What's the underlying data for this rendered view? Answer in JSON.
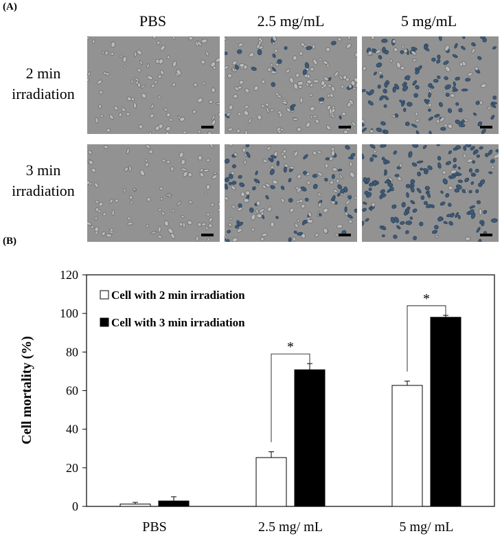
{
  "panel_a": {
    "label": "(A)",
    "columns": [
      "PBS",
      "2.5 mg/mL",
      "5 mg/mL"
    ],
    "rows": [
      {
        "line1": "2 min",
        "line2": "irradiation"
      },
      {
        "line1": "3 min",
        "line2": "irradiation"
      }
    ]
  },
  "panel_b": {
    "label": "(B)"
  },
  "chart_data": {
    "type": "bar",
    "categories": [
      "PBS",
      "2.5 mg/ mL",
      "5 mg/ mL"
    ],
    "series": [
      {
        "name": "Cell with 2 min irradiation",
        "values": [
          1.2,
          25.3,
          62.7
        ],
        "errors": [
          0.9,
          3.0,
          2.2
        ],
        "color": "#ffffff"
      },
      {
        "name": "Cell with 3 min irradiation",
        "values": [
          2.8,
          70.8,
          98.0
        ],
        "errors": [
          2.2,
          3.2,
          1.0
        ],
        "color": "#000000"
      }
    ],
    "ylabel": "Cell mortality (%)",
    "xlabel": "",
    "ylim": [
      0,
      120
    ],
    "yticks": [
      0,
      20,
      40,
      60,
      80,
      100,
      120
    ],
    "legend_position": "top-left",
    "significance": [
      {
        "category_index": 1,
        "label": "*"
      },
      {
        "category_index": 2,
        "label": "*"
      }
    ]
  }
}
